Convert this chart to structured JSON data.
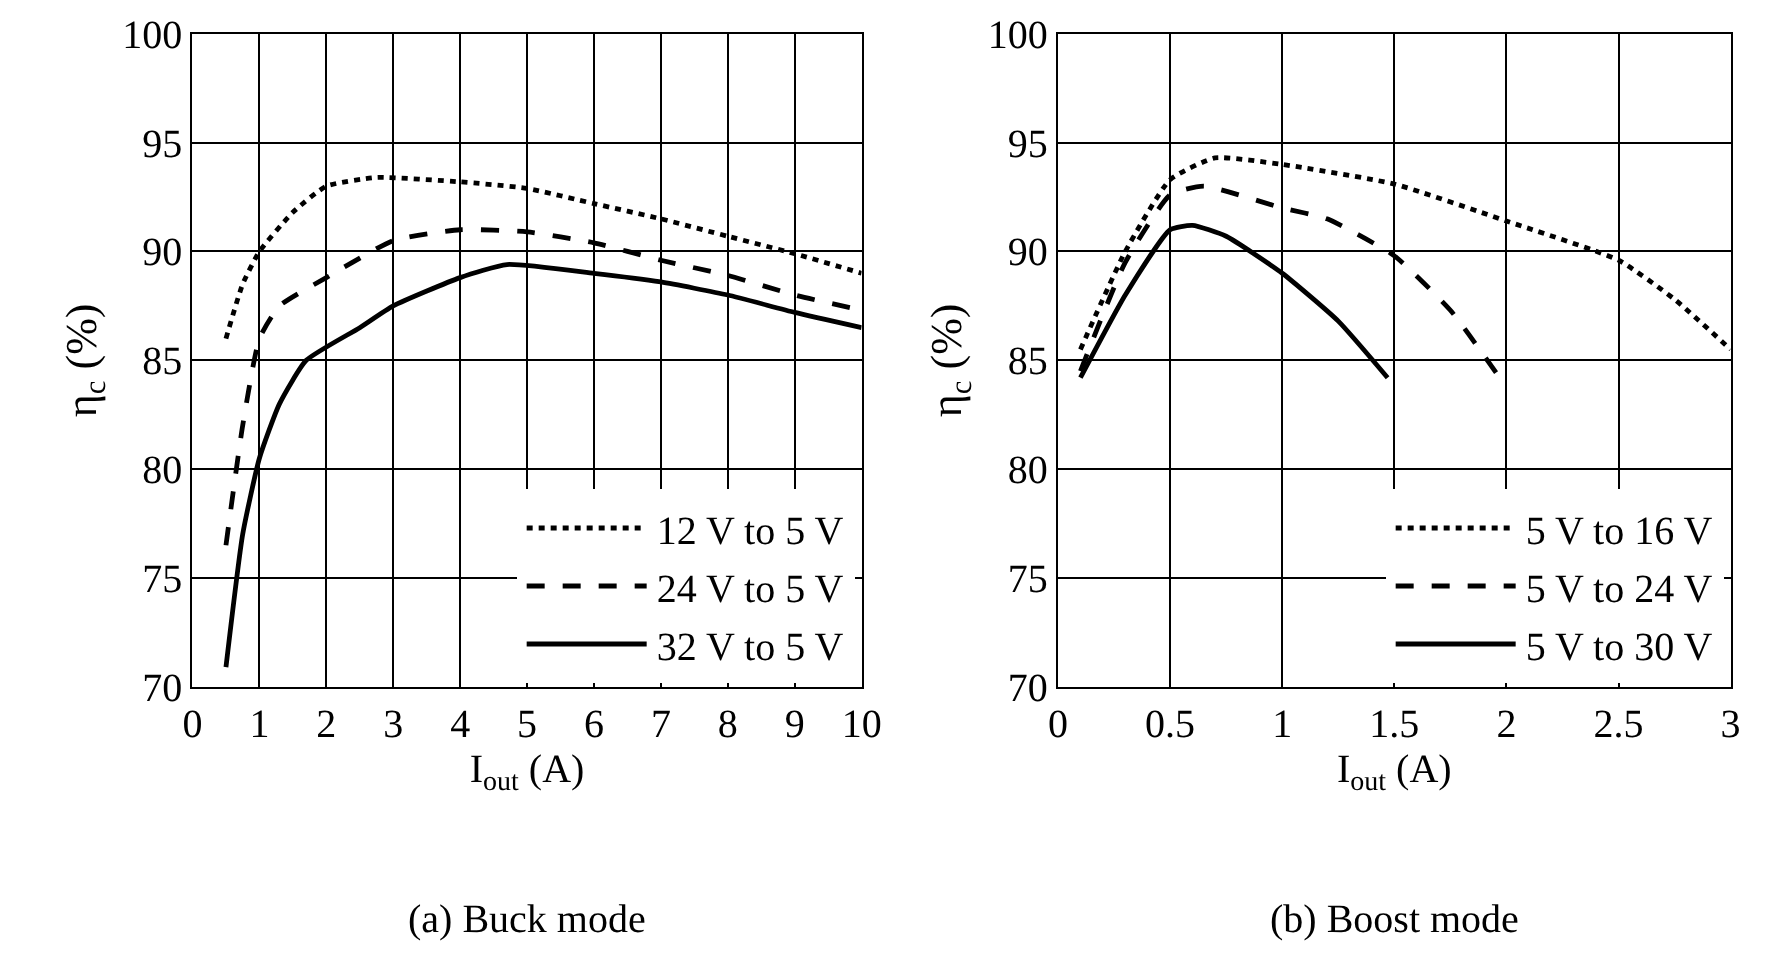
{
  "chart_data": [
    {
      "type": "line",
      "title": "(a) Buck mode",
      "xlabel": "I$_{out}$ (A)",
      "ylabel": "η$_{c}$ (%)",
      "xlim": [
        0,
        10
      ],
      "xticks": [
        0,
        1,
        2,
        3,
        4,
        5,
        6,
        7,
        8,
        9,
        10
      ],
      "ylim": [
        70,
        100
      ],
      "yticks": [
        70,
        75,
        80,
        85,
        90,
        95,
        100
      ],
      "grid": true,
      "legend": "bottom right",
      "marker": "none",
      "series": [
        {
          "name": "12 V to 5 V",
          "color": "#000000",
          "line_style": "dotted",
          "x": [
            0.5,
            0.75,
            1,
            1.5,
            2,
            2.75,
            4,
            5,
            6,
            7,
            8,
            9,
            10
          ],
          "values": [
            86,
            88.5,
            90,
            91.8,
            93,
            93.4,
            93.2,
            92.9,
            92.2,
            91.5,
            90.7,
            89.9,
            89
          ]
        },
        {
          "name": "24 V to 5 V",
          "color": "#000000",
          "line_style": "dashed",
          "x": [
            0.5,
            0.75,
            1,
            1.3,
            2,
            3,
            4,
            5,
            6,
            7,
            8,
            9,
            10
          ],
          "values": [
            76.5,
            82,
            86,
            87.5,
            88.8,
            90.5,
            91,
            90.9,
            90.4,
            89.6,
            88.9,
            88,
            87.3
          ]
        },
        {
          "name": "32 V to 5 V",
          "color": "#000000",
          "line_style": "solid",
          "x": [
            0.5,
            0.75,
            1,
            1.3,
            1.7,
            2.5,
            3,
            4,
            4.7,
            6,
            7,
            8,
            9,
            10
          ],
          "values": [
            70.9,
            77,
            80.5,
            83,
            85,
            86.5,
            87.5,
            88.8,
            89.4,
            89,
            88.6,
            88,
            87.2,
            86.5
          ]
        }
      ]
    },
    {
      "type": "line",
      "title": "(b) Boost mode",
      "xlabel": "I$_{out}$ (A)",
      "ylabel": "η$_{c}$ (%)",
      "xlim": [
        0,
        3
      ],
      "xticks": [
        0,
        0.5,
        1,
        1.5,
        2,
        2.5,
        3
      ],
      "ylim": [
        70,
        100
      ],
      "yticks": [
        70,
        75,
        80,
        85,
        90,
        95,
        100
      ],
      "grid": true,
      "legend": "bottom right",
      "marker": "none",
      "series": [
        {
          "name": "5 V to 16 V",
          "color": "#000000",
          "line_style": "dotted",
          "x": [
            0.1,
            0.3,
            0.5,
            0.7,
            1,
            1.5,
            2,
            2.5,
            2.75,
            3
          ],
          "values": [
            85.5,
            90,
            93.3,
            94.3,
            94,
            93.1,
            91.4,
            89.6,
            87.8,
            85.5
          ]
        },
        {
          "name": "5 V to 24 V",
          "color": "#000000",
          "line_style": "dashed",
          "x": [
            0.1,
            0.3,
            0.5,
            0.65,
            1,
            1.2,
            1.5,
            1.75,
            1.97
          ],
          "values": [
            84.5,
            89.5,
            92.6,
            93,
            92,
            91.5,
            89.8,
            87.3,
            84.2
          ]
        },
        {
          "name": "5 V to 30 V",
          "color": "#000000",
          "line_style": "solid",
          "x": [
            0.1,
            0.3,
            0.5,
            0.6,
            0.75,
            1,
            1.25,
            1.47
          ],
          "values": [
            84.2,
            88,
            91,
            91.2,
            90.7,
            89,
            86.8,
            84.2
          ]
        }
      ]
    }
  ]
}
